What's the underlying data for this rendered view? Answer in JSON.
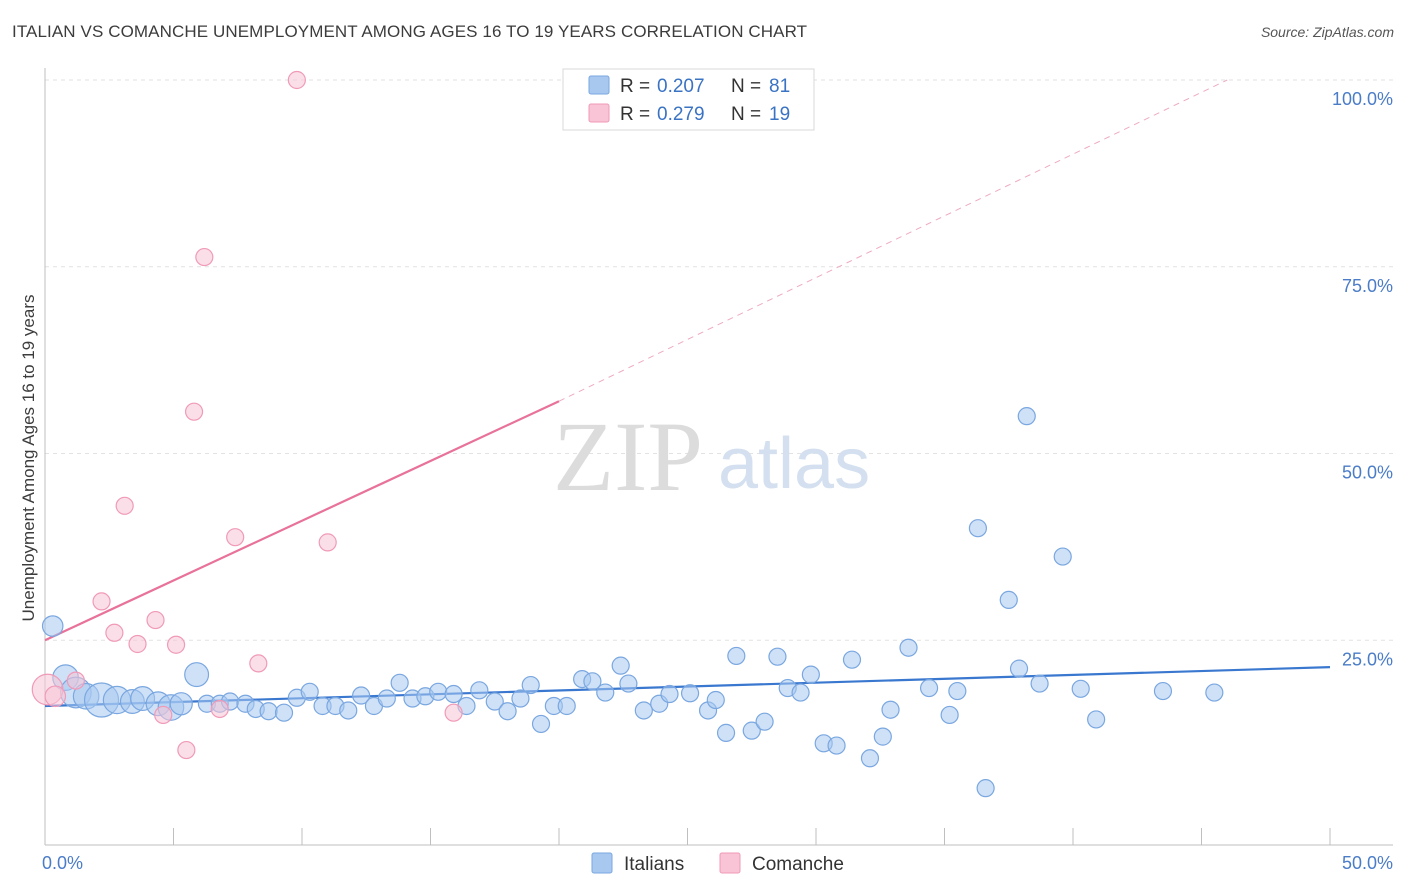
{
  "header": {
    "title": "ITALIAN VS COMANCHE UNEMPLOYMENT AMONG AGES 16 TO 19 YEARS CORRELATION CHART",
    "source": "Source: ZipAtlas.com"
  },
  "watermark": {
    "zip": "ZIP",
    "atlas": "atlas"
  },
  "legend": {
    "rows": [
      {
        "r_label": "R =",
        "r_value": "0.207",
        "n_label": "N =",
        "n_value": "81",
        "color": "#a8c8f0",
        "stroke": "#7aa7e0"
      },
      {
        "r_label": "R =",
        "r_value": "0.279",
        "n_label": "N =",
        "n_value": "19",
        "color": "#f8c4d6",
        "stroke": "#f09ab8"
      }
    ]
  },
  "bottom_legend": [
    {
      "label": "Italians",
      "color": "#a8c8f0",
      "stroke": "#7aa7e0"
    },
    {
      "label": "Comanche",
      "color": "#f8c4d6",
      "stroke": "#f09ab8"
    }
  ],
  "colors": {
    "italians": "#3a78d0",
    "comanche": "#e8729a",
    "italians_fill": "#a8c8f0",
    "comanche_fill": "#f8c4d6"
  },
  "chart_data": {
    "type": "scatter",
    "title": "ITALIAN VS COMANCHE UNEMPLOYMENT AMONG AGES 16 TO 19 YEARS CORRELATION CHART",
    "xlabel": "",
    "ylabel": "Unemployment Among Ages 16 to 19 years",
    "xlim": [
      0,
      50
    ],
    "ylim": [
      0,
      105
    ],
    "x_tick_labels": [
      "0.0%",
      "50.0%"
    ],
    "y_ticks": [
      25,
      50,
      75,
      100
    ],
    "y_tick_labels": [
      "25.0%",
      "50.0%",
      "75.0%",
      "100.0%"
    ],
    "grid": true,
    "legend_position": "top-center",
    "series": [
      {
        "name": "Italians",
        "points": [
          [
            0.3,
            26.9,
            1.2
          ],
          [
            0.8,
            20.0,
            1.5
          ],
          [
            1.2,
            18.0,
            1.8
          ],
          [
            1.6,
            17.5,
            1.5
          ],
          [
            2.2,
            17.0,
            2.0
          ],
          [
            2.8,
            17.0,
            1.6
          ],
          [
            3.4,
            16.8,
            1.4
          ],
          [
            3.8,
            17.2,
            1.4
          ],
          [
            4.4,
            16.5,
            1.4
          ],
          [
            4.9,
            16.0,
            1.5
          ],
          [
            5.3,
            16.5,
            1.3
          ],
          [
            5.9,
            20.4,
            1.4
          ],
          [
            6.3,
            16.5,
            1.0
          ],
          [
            6.8,
            16.5,
            1.0
          ],
          [
            7.2,
            16.8,
            1.0
          ],
          [
            7.8,
            16.5,
            1.0
          ],
          [
            8.2,
            15.8,
            1.0
          ],
          [
            8.7,
            15.5,
            1.0
          ],
          [
            9.3,
            15.3,
            1.0
          ],
          [
            9.8,
            17.3,
            1.0
          ],
          [
            10.3,
            18.1,
            1.0
          ],
          [
            10.8,
            16.2,
            1.0
          ],
          [
            11.3,
            16.2,
            1.0
          ],
          [
            11.8,
            15.6,
            1.0
          ],
          [
            12.3,
            17.6,
            1.0
          ],
          [
            12.8,
            16.2,
            1.0
          ],
          [
            13.3,
            17.2,
            1.0
          ],
          [
            13.8,
            19.3,
            1.0
          ],
          [
            14.3,
            17.2,
            1.0
          ],
          [
            14.8,
            17.5,
            1.0
          ],
          [
            15.3,
            18.1,
            1.0
          ],
          [
            15.9,
            17.8,
            1.0
          ],
          [
            16.4,
            16.2,
            1.0
          ],
          [
            16.9,
            18.3,
            1.0
          ],
          [
            17.5,
            16.8,
            1.0
          ],
          [
            18.0,
            15.5,
            1.0
          ],
          [
            18.5,
            17.2,
            1.0
          ],
          [
            18.9,
            19.0,
            1.0
          ],
          [
            19.3,
            13.8,
            1.0
          ],
          [
            19.8,
            16.2,
            1.0
          ],
          [
            20.3,
            16.2,
            1.0
          ],
          [
            20.9,
            19.8,
            1.0
          ],
          [
            21.3,
            19.5,
            1.0
          ],
          [
            21.8,
            18.0,
            1.0
          ],
          [
            22.4,
            21.6,
            1.0
          ],
          [
            22.7,
            19.2,
            1.0
          ],
          [
            23.3,
            15.6,
            1.0
          ],
          [
            23.9,
            16.5,
            1.0
          ],
          [
            24.3,
            17.8,
            1.0
          ],
          [
            25.1,
            17.9,
            1.0
          ],
          [
            25.8,
            15.6,
            1.0
          ],
          [
            26.1,
            17.0,
            1.0
          ],
          [
            26.5,
            12.6,
            1.0
          ],
          [
            26.9,
            22.9,
            1.0
          ],
          [
            27.5,
            12.9,
            1.0
          ],
          [
            28.0,
            14.1,
            1.0
          ],
          [
            28.5,
            22.8,
            1.0
          ],
          [
            28.9,
            18.6,
            1.0
          ],
          [
            29.4,
            18.0,
            1.0
          ],
          [
            29.8,
            20.4,
            1.0
          ],
          [
            30.3,
            11.2,
            1.0
          ],
          [
            30.8,
            10.9,
            1.0
          ],
          [
            31.4,
            22.4,
            1.0
          ],
          [
            32.1,
            9.2,
            1.0
          ],
          [
            32.6,
            12.1,
            1.0
          ],
          [
            32.9,
            15.7,
            1.0
          ],
          [
            33.6,
            24.0,
            1.0
          ],
          [
            34.4,
            18.6,
            1.0
          ],
          [
            35.2,
            15.0,
            1.0
          ],
          [
            35.5,
            18.2,
            1.0
          ],
          [
            36.3,
            40.0,
            1.0
          ],
          [
            36.6,
            5.2,
            1.0
          ],
          [
            37.5,
            30.4,
            1.0
          ],
          [
            37.9,
            21.2,
            1.0
          ],
          [
            38.2,
            55.0,
            1.0
          ],
          [
            38.7,
            19.2,
            1.0
          ],
          [
            39.6,
            36.2,
            1.0
          ],
          [
            40.3,
            18.5,
            1.0
          ],
          [
            40.9,
            14.4,
            1.0
          ],
          [
            43.5,
            18.2,
            1.0
          ],
          [
            45.5,
            18.0,
            1.0
          ]
        ],
        "trend": {
          "x": [
            0,
            50
          ],
          "y": [
            16.2,
            21.4
          ],
          "dashed": false
        }
      },
      {
        "name": "Comanche",
        "points": [
          [
            0.1,
            18.4,
            1.8
          ],
          [
            0.4,
            17.5,
            1.2
          ],
          [
            1.2,
            19.6,
            1.0
          ],
          [
            2.2,
            30.2,
            1.0
          ],
          [
            2.7,
            26.0,
            1.0
          ],
          [
            3.1,
            43.0,
            1.0
          ],
          [
            3.6,
            24.5,
            1.0
          ],
          [
            4.3,
            27.7,
            1.0
          ],
          [
            4.6,
            15.0,
            1.0
          ],
          [
            5.1,
            24.4,
            1.0
          ],
          [
            5.5,
            10.3,
            1.0
          ],
          [
            5.8,
            55.6,
            1.0
          ],
          [
            6.2,
            76.3,
            1.0
          ],
          [
            6.8,
            15.8,
            1.0
          ],
          [
            7.4,
            38.8,
            1.0
          ],
          [
            8.3,
            21.9,
            1.0
          ],
          [
            9.8,
            100.0,
            1.0
          ],
          [
            11.0,
            38.1,
            1.0
          ],
          [
            15.9,
            15.3,
            1.0
          ]
        ],
        "trend": {
          "x": [
            0,
            20
          ],
          "y": [
            25.0,
            57.0
          ],
          "dashed": false
        },
        "trend_extension": {
          "x": [
            20,
            46
          ],
          "y": [
            57.0,
            100.0
          ],
          "dashed": true
        }
      }
    ]
  }
}
